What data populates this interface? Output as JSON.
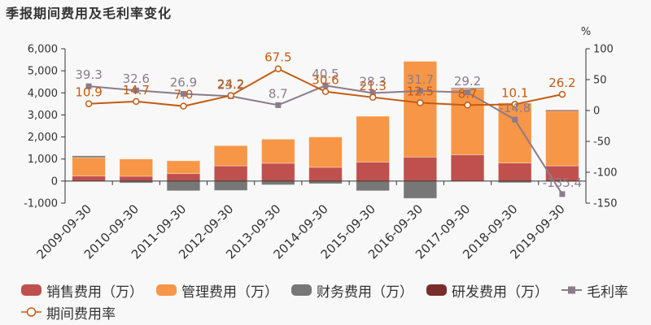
{
  "title": "季报期间费用及毛利率变化",
  "chart_data": {
    "type": "bar",
    "title": "季报期间费用及毛利率变化",
    "categories": [
      "2009-09-30",
      "2010-09-30",
      "2011-09-30",
      "2012-09-30",
      "2013-09-30",
      "2014-09-30",
      "2015-09-30",
      "2016-09-30",
      "2017-09-30",
      "2018-09-30",
      "2019-09-30"
    ],
    "y_left": {
      "ticks": [
        "6,000",
        "5,000",
        "4,000",
        "3,000",
        "2,000",
        "1,000",
        "0",
        "-1,000"
      ],
      "tick_values": [
        6000,
        5000,
        4000,
        3000,
        2000,
        1000,
        0,
        -1000
      ],
      "ylim": [
        -1000,
        6000
      ]
    },
    "y_right": {
      "unit_label": "%",
      "ticks": [
        "100",
        "50",
        "0",
        "-50",
        "-100",
        "-150"
      ],
      "tick_values": [
        100,
        50,
        0,
        -50,
        -100,
        -150
      ],
      "ylim": [
        -150,
        100
      ]
    },
    "bar_series": [
      {
        "name": "销售费用（万）",
        "color": "#c0504d",
        "values": [
          230,
          220,
          340,
          690,
          810,
          625,
          860,
          1090,
          1190,
          820,
          690
        ]
      },
      {
        "name": "管理费用（万）",
        "color": "#f79646",
        "values": [
          836,
          780,
          580,
          917,
          1090,
          1375,
          2080,
          4340,
          2990,
          2720,
          2480
        ]
      },
      {
        "name": "财务费用（万）",
        "color": "#777777",
        "values": [
          80,
          -85,
          -440,
          -425,
          -170,
          -120,
          -440,
          -785,
          50,
          -75,
          -10
        ]
      },
      {
        "name": "研发费用（万）",
        "color": "#7b2c2c",
        "values": [
          0,
          0,
          0,
          0,
          0,
          0,
          0,
          0,
          0,
          0,
          50
        ]
      }
    ],
    "line_series": [
      {
        "name": "毛利率",
        "color": "#8b7b8b",
        "marker": "square",
        "axis": "right",
        "values": [
          39.3,
          32.6,
          26.9,
          23.2,
          8.7,
          40.5,
          28.3,
          31.7,
          29.2,
          -14.8,
          -135.4
        ],
        "labels": [
          "39.3",
          "32.6",
          "26.9",
          "23.2",
          "8.7",
          "40.5",
          "28.3",
          "31.7",
          "29.2",
          "-14.8",
          "-135.4"
        ]
      },
      {
        "name": "期间费用率",
        "color": "#c55a11",
        "marker": "circle",
        "axis": "right",
        "values": [
          10.9,
          14.7,
          7.0,
          24.2,
          67.5,
          30.6,
          21.3,
          12.5,
          8.7,
          10.1,
          26.2
        ],
        "labels": [
          "10.9",
          "14.7",
          "7.0",
          "24.2",
          "67.5",
          "30.6",
          "21.3",
          "12.5",
          "8.7",
          "10.1",
          "26.2"
        ]
      }
    ],
    "legend_position": "bottom",
    "grid": false
  },
  "legend": [
    {
      "label": "销售费用（万）",
      "type": "bar",
      "color": "#c0504d"
    },
    {
      "label": "管理费用（万）",
      "type": "bar",
      "color": "#f79646"
    },
    {
      "label": "财务费用（万）",
      "type": "bar",
      "color": "#777777"
    },
    {
      "label": "研发费用（万）",
      "type": "bar",
      "color": "#7b2c2c"
    },
    {
      "label": "毛利率",
      "type": "line-square",
      "color": "#8b7b8b"
    },
    {
      "label": "期间费用率",
      "type": "line-circle",
      "color": "#c55a11"
    }
  ]
}
